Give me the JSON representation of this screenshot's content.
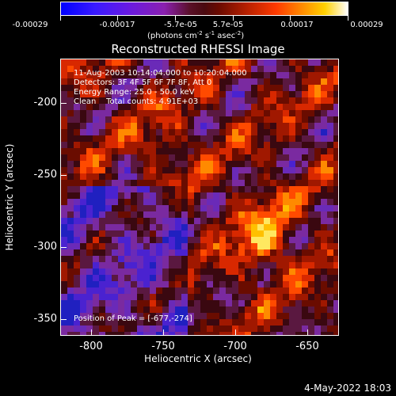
{
  "colorbar": {
    "tick_labels": [
      "-0.00029",
      "-0.00017",
      "-5.7e-05",
      "5.7e-05",
      "0.00017",
      "0.00029"
    ],
    "unit_text": "(photons cm",
    "unit_sup1": "-2",
    "unit_mid": " s",
    "unit_sup2": "-1",
    "unit_end": " asec",
    "unit_sup3": "-2",
    "unit_close": ")"
  },
  "title": "Reconstructed RHESSI Image",
  "info": {
    "line1": "11-Aug-2003 10:14:04.000 to 10:20:04.000",
    "line2": "Detectors: 3F 4F 5F 6F 7F 8F, Att 0",
    "line3": "Energy Range: 25.0 - 50.0 keV",
    "line4": "Clean    Total counts: 4.91E+03",
    "peak": "Position of Peak = [-677,-274]"
  },
  "axes": {
    "xlabel": "Heliocentric X (arcsec)",
    "ylabel": "Heliocentric Y (arcsec)",
    "xticks": [
      "-800",
      "-750",
      "-700",
      "-650"
    ],
    "yticks": [
      "-200",
      "-250",
      "-300",
      "-350"
    ]
  },
  "footer": {
    "date": "4-May-2022 18:03"
  }
}
